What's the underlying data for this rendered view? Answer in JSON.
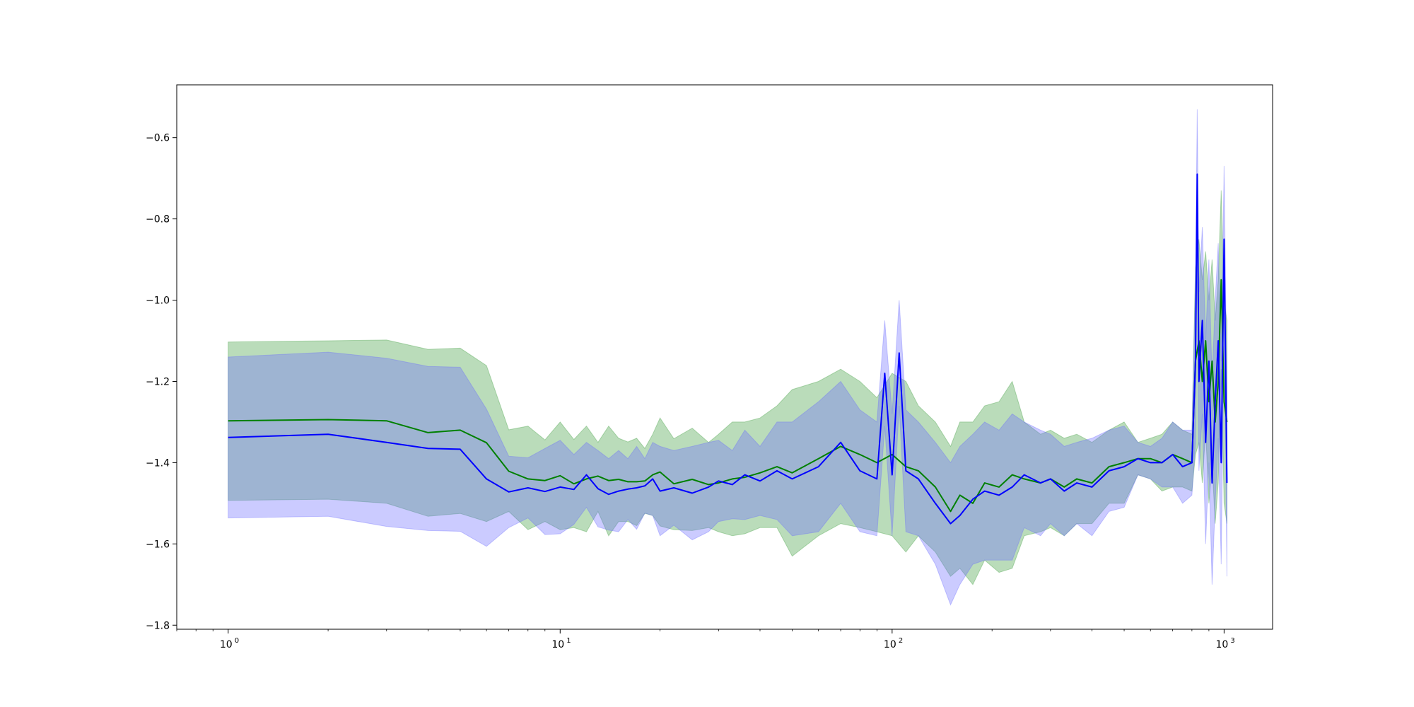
{
  "chart_data": {
    "type": "line",
    "title": "",
    "xlabel": "",
    "ylabel": "",
    "xscale": "log",
    "xlim": [
      0.7,
      1400
    ],
    "ylim": [
      -1.81,
      -0.47
    ],
    "grid": false,
    "legend": false,
    "x_ticks": [
      {
        "value": 1,
        "base": "10",
        "exp": "0"
      },
      {
        "value": 10,
        "base": "10",
        "exp": "1"
      },
      {
        "value": 100,
        "base": "10",
        "exp": "2"
      },
      {
        "value": 1000,
        "base": "10",
        "exp": "3"
      }
    ],
    "y_ticks": [
      {
        "value": -0.6,
        "label": "−0.6"
      },
      {
        "value": -0.8,
        "label": "−0.8"
      },
      {
        "value": -1.0,
        "label": "−1.0"
      },
      {
        "value": -1.2,
        "label": "−1.2"
      },
      {
        "value": -1.4,
        "label": "−1.4"
      },
      {
        "value": -1.6,
        "label": "−1.6"
      },
      {
        "value": -1.8,
        "label": "−1.8"
      }
    ],
    "series": [
      {
        "color": "#008000",
        "band_color": "#3a9a3a",
        "x": [
          1,
          2,
          3,
          4,
          5,
          6,
          7,
          8,
          9,
          10,
          11,
          12,
          13,
          14,
          15,
          16,
          17,
          18,
          19,
          20,
          22,
          25,
          28,
          30,
          33,
          36,
          40,
          45,
          50,
          60,
          70,
          80,
          90,
          100,
          110,
          120,
          135,
          150,
          160,
          175,
          190,
          210,
          230,
          250,
          280,
          300,
          330,
          360,
          400,
          450,
          500,
          550,
          600,
          650,
          700,
          750,
          800,
          820,
          840,
          860,
          880,
          900,
          920,
          940,
          960,
          980,
          1000,
          1020
        ],
        "mean": [
          -1.297,
          -1.294,
          -1.297,
          -1.326,
          -1.32,
          -1.351,
          -1.421,
          -1.44,
          -1.444,
          -1.432,
          -1.452,
          -1.44,
          -1.433,
          -1.444,
          -1.441,
          -1.447,
          -1.447,
          -1.445,
          -1.43,
          -1.423,
          -1.452,
          -1.441,
          -1.454,
          -1.45,
          -1.44,
          -1.436,
          -1.425,
          -1.41,
          -1.425,
          -1.39,
          -1.36,
          -1.38,
          -1.4,
          -1.38,
          -1.41,
          -1.42,
          -1.46,
          -1.52,
          -1.48,
          -1.5,
          -1.45,
          -1.46,
          -1.43,
          -1.44,
          -1.45,
          -1.44,
          -1.46,
          -1.44,
          -1.45,
          -1.41,
          -1.4,
          -1.39,
          -1.39,
          -1.4,
          -1.38,
          -1.39,
          -1.4,
          -1.15,
          -1.1,
          -1.2,
          -1.1,
          -1.25,
          -1.15,
          -1.3,
          -1.2,
          -0.95,
          -1.25,
          -1.3
        ],
        "upper": [
          -1.103,
          -1.1,
          -1.098,
          -1.121,
          -1.118,
          -1.161,
          -1.319,
          -1.31,
          -1.344,
          -1.3,
          -1.343,
          -1.31,
          -1.35,
          -1.31,
          -1.34,
          -1.349,
          -1.34,
          -1.365,
          -1.33,
          -1.29,
          -1.341,
          -1.315,
          -1.35,
          -1.33,
          -1.3,
          -1.3,
          -1.29,
          -1.26,
          -1.22,
          -1.2,
          -1.17,
          -1.2,
          -1.24,
          -1.18,
          -1.2,
          -1.26,
          -1.3,
          -1.36,
          -1.3,
          -1.3,
          -1.26,
          -1.25,
          -1.2,
          -1.3,
          -1.33,
          -1.32,
          -1.34,
          -1.33,
          -1.35,
          -1.32,
          -1.3,
          -1.35,
          -1.34,
          -1.33,
          -1.3,
          -1.32,
          -1.33,
          -0.92,
          -0.85,
          -0.95,
          -0.88,
          -1.0,
          -0.9,
          -1.05,
          -0.95,
          -0.73,
          -1.0,
          -1.05
        ],
        "lower": [
          -1.493,
          -1.49,
          -1.5,
          -1.532,
          -1.525,
          -1.545,
          -1.52,
          -1.565,
          -1.545,
          -1.565,
          -1.56,
          -1.57,
          -1.52,
          -1.58,
          -1.545,
          -1.545,
          -1.555,
          -1.525,
          -1.53,
          -1.556,
          -1.565,
          -1.567,
          -1.56,
          -1.57,
          -1.58,
          -1.575,
          -1.56,
          -1.56,
          -1.63,
          -1.58,
          -1.55,
          -1.56,
          -1.57,
          -1.58,
          -1.62,
          -1.58,
          -1.62,
          -1.68,
          -1.66,
          -1.7,
          -1.64,
          -1.67,
          -1.66,
          -1.58,
          -1.57,
          -1.56,
          -1.58,
          -1.55,
          -1.55,
          -1.5,
          -1.5,
          -1.43,
          -1.44,
          -1.47,
          -1.46,
          -1.46,
          -1.47,
          -1.38,
          -1.35,
          -1.45,
          -1.32,
          -1.5,
          -1.4,
          -1.55,
          -1.45,
          -1.17,
          -1.5,
          -1.55
        ]
      },
      {
        "color": "#0000ff",
        "band_color": "#6a6aff",
        "x": [
          1,
          2,
          3,
          4,
          5,
          6,
          7,
          8,
          9,
          10,
          11,
          12,
          13,
          14,
          15,
          16,
          17,
          18,
          19,
          20,
          22,
          25,
          28,
          30,
          33,
          36,
          40,
          45,
          50,
          60,
          70,
          80,
          90,
          95,
          100,
          105,
          110,
          120,
          135,
          150,
          160,
          175,
          190,
          210,
          230,
          250,
          280,
          300,
          330,
          360,
          400,
          450,
          500,
          550,
          600,
          650,
          700,
          750,
          800,
          820,
          830,
          840,
          860,
          880,
          900,
          920,
          940,
          960,
          980,
          1000,
          1020
        ],
        "mean": [
          -1.338,
          -1.33,
          -1.35,
          -1.365,
          -1.367,
          -1.44,
          -1.472,
          -1.462,
          -1.471,
          -1.46,
          -1.466,
          -1.43,
          -1.464,
          -1.478,
          -1.47,
          -1.465,
          -1.462,
          -1.457,
          -1.44,
          -1.47,
          -1.462,
          -1.475,
          -1.46,
          -1.445,
          -1.454,
          -1.43,
          -1.445,
          -1.42,
          -1.44,
          -1.41,
          -1.35,
          -1.42,
          -1.44,
          -1.18,
          -1.43,
          -1.13,
          -1.42,
          -1.44,
          -1.5,
          -1.55,
          -1.53,
          -1.49,
          -1.47,
          -1.48,
          -1.46,
          -1.43,
          -1.45,
          -1.44,
          -1.47,
          -1.45,
          -1.46,
          -1.42,
          -1.41,
          -1.39,
          -1.4,
          -1.4,
          -1.38,
          -1.41,
          -1.4,
          -1.15,
          -0.69,
          -1.2,
          -1.05,
          -1.35,
          -1.15,
          -1.45,
          -1.25,
          -1.1,
          -1.4,
          -0.85,
          -1.45
        ],
        "upper": [
          -1.14,
          -1.128,
          -1.143,
          -1.163,
          -1.165,
          -1.268,
          -1.384,
          -1.388,
          -1.365,
          -1.345,
          -1.38,
          -1.35,
          -1.37,
          -1.39,
          -1.37,
          -1.39,
          -1.36,
          -1.39,
          -1.35,
          -1.36,
          -1.37,
          -1.36,
          -1.35,
          -1.345,
          -1.37,
          -1.32,
          -1.36,
          -1.3,
          -1.3,
          -1.25,
          -1.2,
          -1.27,
          -1.3,
          -1.05,
          -1.28,
          -1.0,
          -1.27,
          -1.3,
          -1.35,
          -1.4,
          -1.36,
          -1.33,
          -1.3,
          -1.32,
          -1.28,
          -1.3,
          -1.32,
          -1.33,
          -1.36,
          -1.35,
          -1.34,
          -1.32,
          -1.31,
          -1.35,
          -1.36,
          -1.34,
          -1.3,
          -1.32,
          -1.32,
          -0.95,
          -0.53,
          -0.98,
          -0.82,
          -1.1,
          -0.9,
          -1.2,
          -1.0,
          -0.86,
          -1.15,
          -0.67,
          -1.22
        ],
        "lower": [
          -1.536,
          -1.532,
          -1.557,
          -1.567,
          -1.569,
          -1.606,
          -1.56,
          -1.536,
          -1.577,
          -1.575,
          -1.552,
          -1.51,
          -1.558,
          -1.566,
          -1.57,
          -1.54,
          -1.564,
          -1.524,
          -1.53,
          -1.58,
          -1.554,
          -1.59,
          -1.57,
          -1.545,
          -1.538,
          -1.54,
          -1.53,
          -1.54,
          -1.58,
          -1.57,
          -1.5,
          -1.57,
          -1.58,
          -1.31,
          -1.58,
          -1.26,
          -1.57,
          -1.58,
          -1.65,
          -1.75,
          -1.7,
          -1.65,
          -1.64,
          -1.64,
          -1.64,
          -1.56,
          -1.58,
          -1.55,
          -1.58,
          -1.55,
          -1.58,
          -1.52,
          -1.51,
          -1.43,
          -1.44,
          -1.46,
          -1.46,
          -1.5,
          -1.48,
          -1.35,
          -0.85,
          -1.42,
          -1.28,
          -1.6,
          -1.4,
          -1.7,
          -1.5,
          -1.34,
          -1.65,
          -1.03,
          -1.68
        ]
      }
    ]
  }
}
